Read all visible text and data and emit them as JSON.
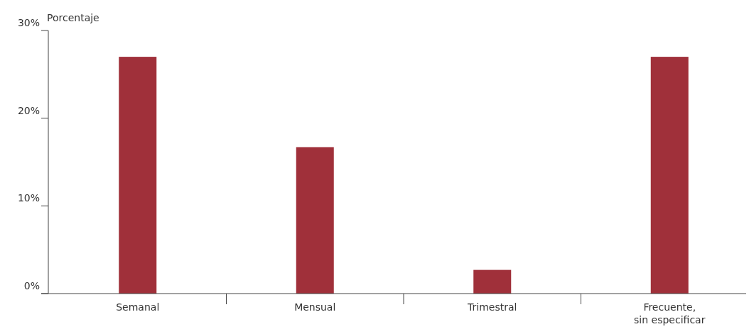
{
  "chart_data": {
    "type": "bar",
    "ylabel": "Porcentaje",
    "categories": [
      "Semanal",
      "Mensual",
      "Trimestral",
      "Frecuente, sin especificar"
    ],
    "values": [
      27,
      16.7,
      2.7,
      27
    ],
    "color": "#a0303a",
    "ylim": [
      0,
      30
    ],
    "yticks": [
      {
        "value": 0,
        "label": "0%"
      },
      {
        "value": 10,
        "label": "10%"
      },
      {
        "value": 20,
        "label": "20%"
      },
      {
        "value": 30,
        "label": "30%"
      }
    ],
    "grid": false
  }
}
